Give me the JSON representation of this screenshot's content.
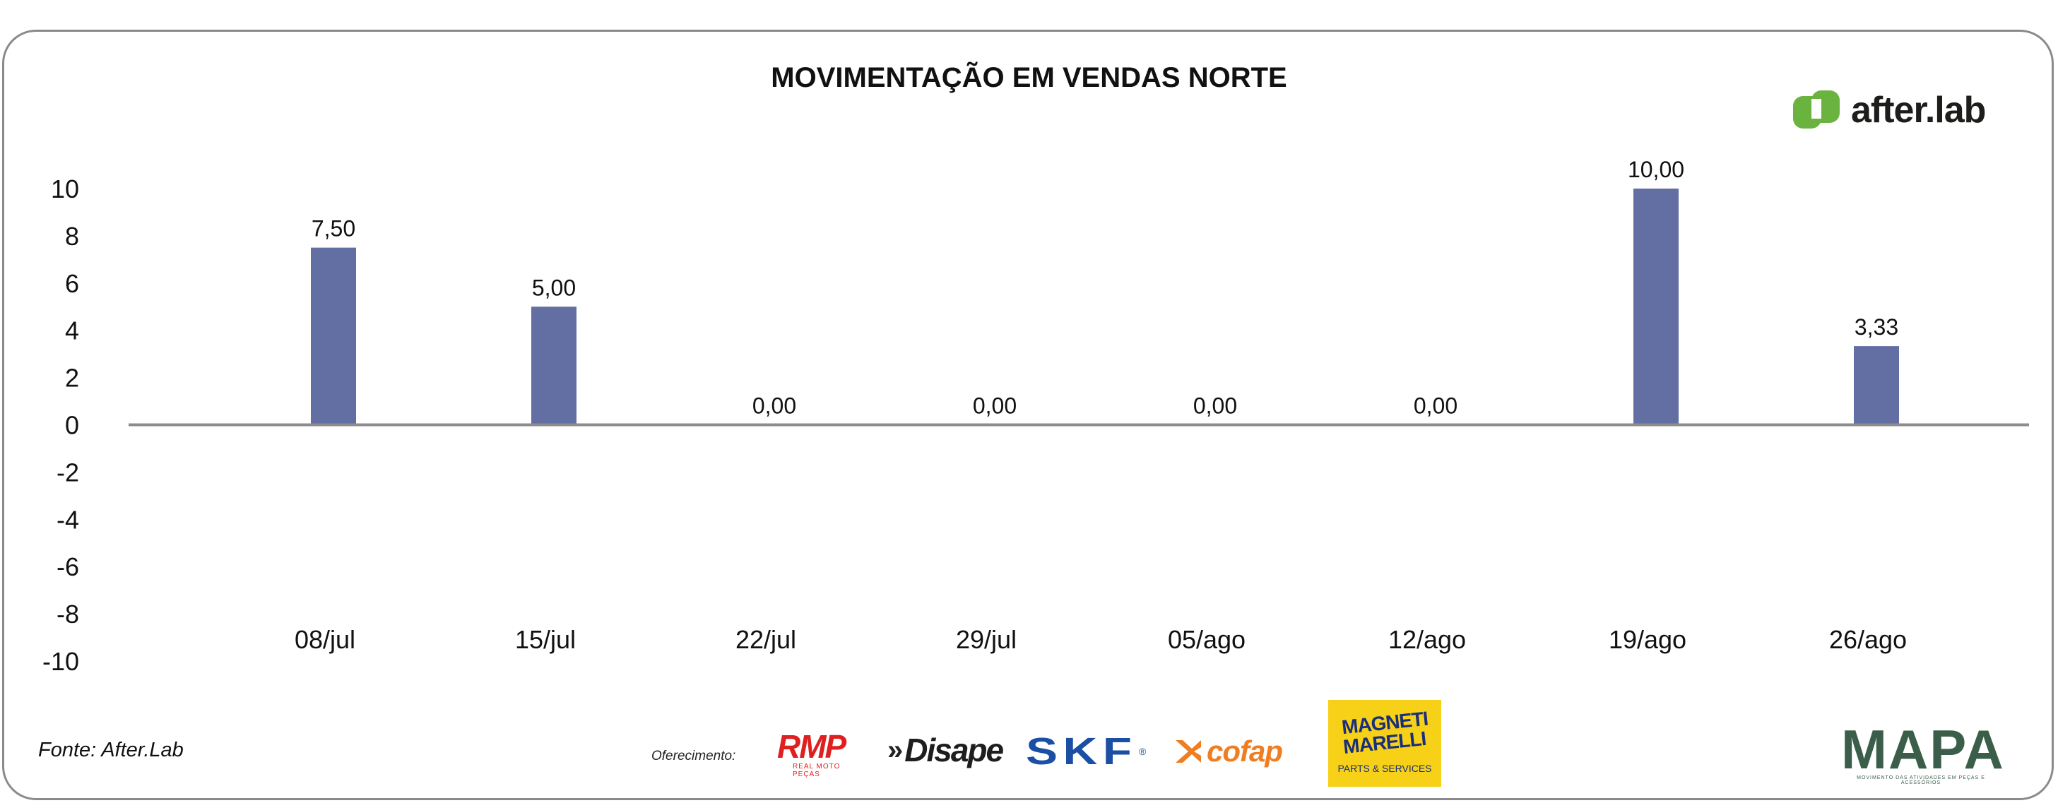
{
  "chart_data": {
    "type": "bar",
    "title": "MOVIMENTAÇÃO EM VENDAS NORTE",
    "categories": [
      "08/jul",
      "15/jul",
      "22/jul",
      "29/jul",
      "05/ago",
      "12/ago",
      "19/ago",
      "26/ago"
    ],
    "values": [
      7.5,
      5.0,
      0.0,
      0.0,
      0.0,
      0.0,
      10.0,
      3.33
    ],
    "data_labels": [
      "7,50",
      "5,00",
      "0,00",
      "0,00",
      "0,00",
      "0,00",
      "10,00",
      "3,33"
    ],
    "y_ticks": [
      "10",
      "8",
      "6",
      "4",
      "2",
      "0",
      "-2",
      "-4",
      "-6",
      "-8",
      "-10"
    ],
    "ylim": [
      -10,
      10
    ],
    "grid": false,
    "legend": "none",
    "bar_color": "#636fa3",
    "axis_color": "#8c8c8c"
  },
  "branding": {
    "afterlab": "after.lab",
    "afterlab_color": "#6bb33f"
  },
  "footer": {
    "source": "Fonte: After.Lab",
    "sponsor_label": "Oferecimento:",
    "sponsors": {
      "rmp": "RMP",
      "rmp_sub": "REAL MOTO PEÇAS",
      "disape": "Disape",
      "skf": "SKF",
      "cofap": "cofap",
      "mm_line1": "MAGNETI",
      "mm_line2": "MARELLI",
      "mm_line3": "PARTS & SERVICES",
      "mapa": "MAPA",
      "mapa_sub": "MOVIMENTO DAS ATIVIDADES EM PEÇAS E ACESSÓRIOS"
    }
  }
}
